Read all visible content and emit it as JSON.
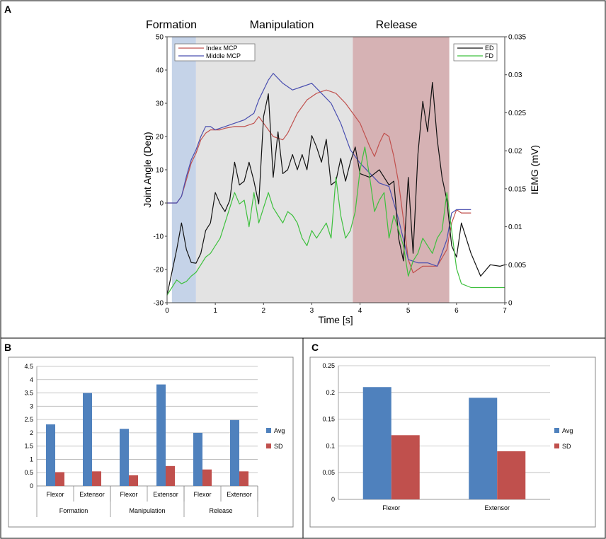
{
  "panel_labels": {
    "a": "A",
    "b": "B",
    "c": "C"
  },
  "chart_data": [
    {
      "type": "line",
      "panel": "A",
      "title": "",
      "phases": [
        {
          "name": "Formation",
          "x_start": 0.1,
          "x_end": 0.6,
          "color": "#c5d3e8"
        },
        {
          "name": "Manipulation",
          "x_start": 0.6,
          "x_end": 3.85,
          "color": "#e3e3e3"
        },
        {
          "name": "Release",
          "x_start": 3.85,
          "x_end": 5.85,
          "color": "#d6b2b4"
        }
      ],
      "xlabel": "Time [s]",
      "ylabel": "Joint Angle (Deg)",
      "y2label": "IEMG (mV)",
      "xlim": [
        0,
        7
      ],
      "ylim": [
        -30,
        50
      ],
      "y2lim": [
        0,
        0.035
      ],
      "xticks": [
        "0",
        "1",
        "2",
        "3",
        "4",
        "5",
        "6",
        "7"
      ],
      "yticks": [
        "-30",
        "-20",
        "-10",
        "0",
        "10",
        "20",
        "30",
        "40",
        "50"
      ],
      "y2ticks": [
        "0",
        "0.005",
        "0.01",
        "0.015",
        "0.02",
        "0.025",
        "0.03",
        "0.035"
      ],
      "legend_left": [
        "Index MCP",
        "Middle MCP"
      ],
      "legend_right": [
        "ED",
        "FD"
      ],
      "series": [
        {
          "name": "Index MCP",
          "axis": "left",
          "color": "#c0504d",
          "points": [
            [
              0,
              0
            ],
            [
              0.2,
              0
            ],
            [
              0.3,
              2
            ],
            [
              0.4,
              7
            ],
            [
              0.5,
              12
            ],
            [
              0.6,
              15
            ],
            [
              0.7,
              19
            ],
            [
              0.8,
              21
            ],
            [
              0.9,
              22
            ],
            [
              1.0,
              22
            ],
            [
              1.1,
              22
            ],
            [
              1.2,
              22.5
            ],
            [
              1.4,
              23
            ],
            [
              1.6,
              23
            ],
            [
              1.8,
              24
            ],
            [
              1.9,
              26
            ],
            [
              2.0,
              24
            ],
            [
              2.2,
              20
            ],
            [
              2.4,
              19
            ],
            [
              2.5,
              21
            ],
            [
              2.7,
              27
            ],
            [
              2.9,
              31
            ],
            [
              3.1,
              33
            ],
            [
              3.3,
              34
            ],
            [
              3.5,
              33
            ],
            [
              3.7,
              30
            ],
            [
              3.8,
              28
            ],
            [
              4.0,
              24
            ],
            [
              4.2,
              17
            ],
            [
              4.3,
              14
            ],
            [
              4.4,
              18
            ],
            [
              4.5,
              21
            ],
            [
              4.6,
              20
            ],
            [
              4.7,
              14
            ],
            [
              4.8,
              6
            ],
            [
              4.9,
              -5
            ],
            [
              5.0,
              -17
            ],
            [
              5.1,
              -21
            ],
            [
              5.3,
              -19
            ],
            [
              5.6,
              -19
            ],
            [
              5.8,
              -14
            ],
            [
              5.9,
              -6
            ],
            [
              6.0,
              -2
            ],
            [
              6.1,
              -3
            ],
            [
              6.3,
              -3
            ]
          ]
        },
        {
          "name": "Middle MCP",
          "axis": "left",
          "color": "#4a4fb0",
          "points": [
            [
              0,
              0
            ],
            [
              0.2,
              0
            ],
            [
              0.3,
              2
            ],
            [
              0.4,
              8
            ],
            [
              0.5,
              13
            ],
            [
              0.6,
              16
            ],
            [
              0.7,
              20
            ],
            [
              0.8,
              23
            ],
            [
              0.9,
              23
            ],
            [
              1.0,
              22
            ],
            [
              1.2,
              23
            ],
            [
              1.4,
              24
            ],
            [
              1.6,
              25
            ],
            [
              1.8,
              27
            ],
            [
              1.9,
              31
            ],
            [
              2.0,
              34
            ],
            [
              2.1,
              37
            ],
            [
              2.2,
              39
            ],
            [
              2.4,
              36
            ],
            [
              2.6,
              34
            ],
            [
              2.8,
              35
            ],
            [
              3.0,
              36
            ],
            [
              3.2,
              33
            ],
            [
              3.4,
              30
            ],
            [
              3.6,
              24
            ],
            [
              3.8,
              16
            ],
            [
              4.0,
              12
            ],
            [
              4.2,
              9
            ],
            [
              4.4,
              6
            ],
            [
              4.6,
              5
            ],
            [
              4.8,
              -5
            ],
            [
              5.0,
              -17
            ],
            [
              5.2,
              -18
            ],
            [
              5.4,
              -18
            ],
            [
              5.6,
              -19
            ],
            [
              5.8,
              -11
            ],
            [
              5.9,
              -3
            ],
            [
              6.0,
              -2
            ],
            [
              6.3,
              -2
            ]
          ]
        },
        {
          "name": "ED",
          "axis": "right",
          "color": "#111111",
          "points": [
            [
              0,
              0.001
            ],
            [
              0.1,
              0.004
            ],
            [
              0.2,
              0.007
            ],
            [
              0.3,
              0.0105
            ],
            [
              0.4,
              0.007
            ],
            [
              0.5,
              0.0053
            ],
            [
              0.6,
              0.0052
            ],
            [
              0.7,
              0.0065
            ],
            [
              0.8,
              0.0095
            ],
            [
              0.9,
              0.0105
            ],
            [
              1.0,
              0.0145
            ],
            [
              1.1,
              0.013
            ],
            [
              1.2,
              0.012
            ],
            [
              1.3,
              0.0135
            ],
            [
              1.4,
              0.0185
            ],
            [
              1.5,
              0.0155
            ],
            [
              1.6,
              0.016
            ],
            [
              1.7,
              0.0185
            ],
            [
              1.8,
              0.016
            ],
            [
              1.9,
              0.013
            ],
            [
              2.0,
              0.0245
            ],
            [
              2.1,
              0.0275
            ],
            [
              2.2,
              0.0165
            ],
            [
              2.3,
              0.0225
            ],
            [
              2.4,
              0.017
            ],
            [
              2.5,
              0.0175
            ],
            [
              2.6,
              0.0195
            ],
            [
              2.7,
              0.0175
            ],
            [
              2.8,
              0.0195
            ],
            [
              2.9,
              0.0175
            ],
            [
              3.0,
              0.022
            ],
            [
              3.1,
              0.0205
            ],
            [
              3.2,
              0.0185
            ],
            [
              3.3,
              0.0215
            ],
            [
              3.4,
              0.0155
            ],
            [
              3.5,
              0.016
            ],
            [
              3.6,
              0.019
            ],
            [
              3.7,
              0.016
            ],
            [
              3.8,
              0.0185
            ],
            [
              3.9,
              0.0205
            ],
            [
              4.0,
              0.017
            ],
            [
              4.2,
              0.0165
            ],
            [
              4.4,
              0.0175
            ],
            [
              4.6,
              0.0155
            ],
            [
              4.7,
              0.016
            ],
            [
              4.8,
              0.0085
            ],
            [
              4.9,
              0.0055
            ],
            [
              5.0,
              0.0165
            ],
            [
              5.1,
              0.0065
            ],
            [
              5.2,
              0.0195
            ],
            [
              5.3,
              0.0265
            ],
            [
              5.4,
              0.0225
            ],
            [
              5.5,
              0.029
            ],
            [
              5.6,
              0.0215
            ],
            [
              5.7,
              0.0165
            ],
            [
              5.8,
              0.0135
            ],
            [
              5.9,
              0.0075
            ],
            [
              6.0,
              0.006
            ],
            [
              6.1,
              0.0105
            ],
            [
              6.2,
              0.0085
            ],
            [
              6.3,
              0.0065
            ],
            [
              6.5,
              0.0035
            ],
            [
              6.7,
              0.005
            ],
            [
              6.9,
              0.0048
            ],
            [
              7.0,
              0.005
            ]
          ]
        },
        {
          "name": "FD",
          "axis": "right",
          "color": "#3ec03e",
          "points": [
            [
              0,
              0.001
            ],
            [
              0.1,
              0.002
            ],
            [
              0.2,
              0.003
            ],
            [
              0.3,
              0.0025
            ],
            [
              0.4,
              0.0028
            ],
            [
              0.5,
              0.0035
            ],
            [
              0.6,
              0.004
            ],
            [
              0.7,
              0.005
            ],
            [
              0.8,
              0.006
            ],
            [
              0.9,
              0.0065
            ],
            [
              1.0,
              0.0075
            ],
            [
              1.1,
              0.0085
            ],
            [
              1.2,
              0.0105
            ],
            [
              1.3,
              0.0125
            ],
            [
              1.4,
              0.0145
            ],
            [
              1.5,
              0.013
            ],
            [
              1.6,
              0.0135
            ],
            [
              1.7,
              0.01
            ],
            [
              1.8,
              0.0145
            ],
            [
              1.9,
              0.0105
            ],
            [
              2.0,
              0.0125
            ],
            [
              2.1,
              0.0145
            ],
            [
              2.2,
              0.0125
            ],
            [
              2.3,
              0.0115
            ],
            [
              2.4,
              0.0105
            ],
            [
              2.5,
              0.012
            ],
            [
              2.6,
              0.0115
            ],
            [
              2.7,
              0.0105
            ],
            [
              2.8,
              0.0085
            ],
            [
              2.9,
              0.0075
            ],
            [
              3.0,
              0.0095
            ],
            [
              3.1,
              0.0085
            ],
            [
              3.2,
              0.0095
            ],
            [
              3.3,
              0.0105
            ],
            [
              3.4,
              0.0085
            ],
            [
              3.5,
              0.0165
            ],
            [
              3.6,
              0.0115
            ],
            [
              3.7,
              0.0085
            ],
            [
              3.8,
              0.0095
            ],
            [
              3.9,
              0.012
            ],
            [
              4.0,
              0.0175
            ],
            [
              4.1,
              0.0205
            ],
            [
              4.2,
              0.0165
            ],
            [
              4.3,
              0.012
            ],
            [
              4.4,
              0.0135
            ],
            [
              4.5,
              0.0145
            ],
            [
              4.6,
              0.0085
            ],
            [
              4.7,
              0.0115
            ],
            [
              4.8,
              0.0095
            ],
            [
              4.9,
              0.0075
            ],
            [
              5.0,
              0.0035
            ],
            [
              5.1,
              0.0055
            ],
            [
              5.2,
              0.0065
            ],
            [
              5.3,
              0.0085
            ],
            [
              5.4,
              0.0075
            ],
            [
              5.5,
              0.0065
            ],
            [
              5.6,
              0.0085
            ],
            [
              5.7,
              0.0095
            ],
            [
              5.8,
              0.0145
            ],
            [
              5.9,
              0.0095
            ],
            [
              6.0,
              0.0045
            ],
            [
              6.1,
              0.0025
            ],
            [
              6.3,
              0.002
            ],
            [
              6.6,
              0.002
            ],
            [
              7.0,
              0.002
            ]
          ]
        }
      ]
    },
    {
      "type": "bar",
      "panel": "B",
      "categories": [
        "Flexor",
        "Extensor",
        "Flexor",
        "Extensor",
        "Flexor",
        "Extensor"
      ],
      "groups": [
        "Formation",
        "Manipulation",
        "Release"
      ],
      "series": [
        {
          "name": "Avg",
          "color": "#4f81bd",
          "values": [
            2.32,
            3.5,
            2.15,
            3.82,
            2.0,
            2.48
          ]
        },
        {
          "name": "SD",
          "color": "#c0504d",
          "values": [
            0.52,
            0.55,
            0.4,
            0.75,
            0.62,
            0.55
          ]
        }
      ],
      "ylim": [
        0,
        4.5
      ],
      "yticks": [
        "0",
        "0.5",
        "1",
        "1.5",
        "2",
        "2.5",
        "3",
        "3.5",
        "4",
        "4.5"
      ],
      "xlabel": "",
      "ylabel": "",
      "title": ""
    },
    {
      "type": "bar",
      "panel": "C",
      "categories": [
        "Flexor",
        "Extensor"
      ],
      "series": [
        {
          "name": "Avg",
          "color": "#4f81bd",
          "values": [
            0.21,
            0.19
          ]
        },
        {
          "name": "SD",
          "color": "#c0504d",
          "values": [
            0.12,
            0.09
          ]
        }
      ],
      "ylim": [
        0,
        0.25
      ],
      "yticks": [
        "0",
        "0.05",
        "0.1",
        "0.15",
        "0.2",
        "0.25"
      ],
      "xlabel": "",
      "ylabel": "",
      "title": ""
    }
  ]
}
